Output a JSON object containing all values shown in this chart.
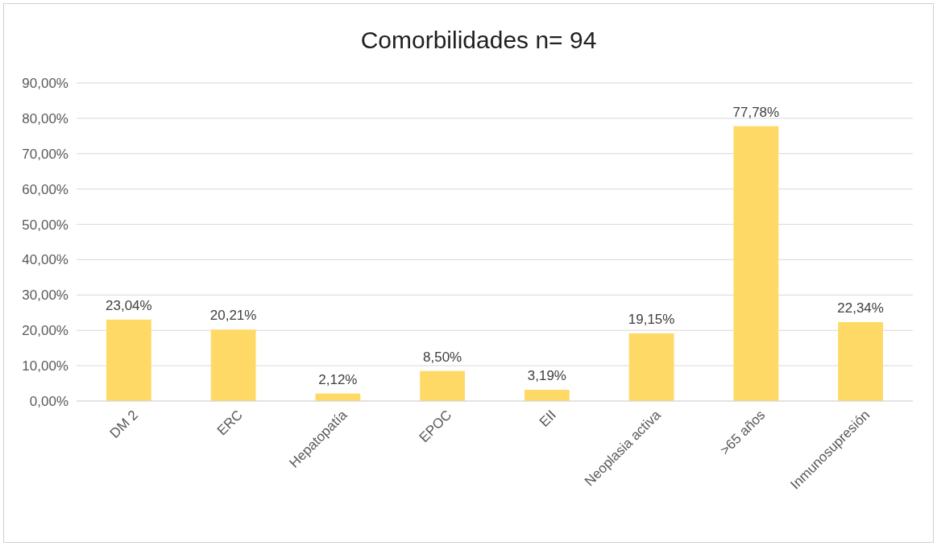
{
  "chart_data": {
    "type": "bar",
    "title": "Comorbilidades n= 94",
    "categories": [
      "DM 2",
      "ERC",
      "Hepatopatía",
      "EPOC",
      "EII",
      "Neoplasia activa",
      ">65 años",
      "Inmunosupresión"
    ],
    "values": [
      23.04,
      20.21,
      2.12,
      8.5,
      3.19,
      19.15,
      77.78,
      22.34
    ],
    "value_labels": [
      "23,04%",
      "20,21%",
      "2,12%",
      "8,50%",
      "3,19%",
      "19,15%",
      "77,78%",
      "22,34%"
    ],
    "color": "#ffd966",
    "ylim": [
      0,
      90
    ],
    "yticks": [
      {
        "value": 0,
        "label": "0,00%"
      },
      {
        "value": 10,
        "label": "10,00%"
      },
      {
        "value": 20,
        "label": "20,00%"
      },
      {
        "value": 30,
        "label": "30,00%"
      },
      {
        "value": 40,
        "label": "40,00%"
      },
      {
        "value": 50,
        "label": "50,00%"
      },
      {
        "value": 60,
        "label": "60,00%"
      },
      {
        "value": 70,
        "label": "70,00%"
      },
      {
        "value": 80,
        "label": "80,00%"
      },
      {
        "value": 90,
        "label": "90,00%"
      }
    ],
    "grid": "y"
  }
}
